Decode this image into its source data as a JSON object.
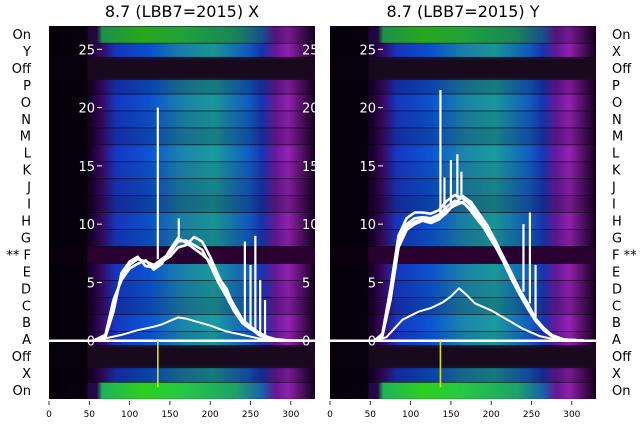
{
  "chart_data": [
    {
      "type": "heatmap",
      "title": "8.7 (LBB7=2015) X",
      "side": "left",
      "xlim": [
        0,
        330
      ],
      "xticks": [
        0,
        50,
        100,
        150,
        200,
        250,
        300
      ],
      "ylim": [
        -5,
        27
      ],
      "yticks": [
        0,
        5,
        10,
        15,
        20,
        25
      ],
      "row_labels": [
        "On",
        "Y",
        "Off",
        "P",
        "O",
        "N",
        "M",
        "L",
        "K",
        "J",
        "I",
        "H",
        "G",
        "** F",
        "E",
        "D",
        "C",
        "B",
        "A",
        "Off",
        "X",
        "On"
      ],
      "heatmap_colorscale": "dark purple-blue-cyan-green",
      "profile_start": 55,
      "profile_end": 315,
      "series": [
        {
          "values": [
            [
              55,
              0
            ],
            [
              70,
              0.4
            ],
            [
              80,
              3
            ],
            [
              90,
              5.5
            ],
            [
              100,
              6.5
            ],
            [
              110,
              7
            ],
            [
              120,
              6.8
            ],
            [
              130,
              6.5
            ],
            [
              140,
              7
            ],
            [
              150,
              7.5
            ],
            [
              160,
              8.5
            ],
            [
              170,
              8.6
            ],
            [
              180,
              8.2
            ],
            [
              190,
              7.8
            ],
            [
              200,
              6.5
            ],
            [
              210,
              5
            ],
            [
              220,
              3.8
            ],
            [
              230,
              2.5
            ],
            [
              240,
              1.5
            ],
            [
              250,
              1
            ],
            [
              260,
              0.6
            ],
            [
              270,
              0.3
            ],
            [
              280,
              0.1
            ],
            [
              300,
              0
            ],
            [
              315,
              0
            ]
          ]
        },
        {
          "values": [
            [
              55,
              0
            ],
            [
              70,
              0.3
            ],
            [
              80,
              2.5
            ],
            [
              90,
              5.8
            ],
            [
              100,
              6.8
            ],
            [
              110,
              7.2
            ],
            [
              120,
              6.4
            ],
            [
              130,
              6.3
            ],
            [
              140,
              6.8
            ],
            [
              150,
              7.2
            ],
            [
              160,
              8
            ],
            [
              170,
              8.2
            ],
            [
              180,
              8.9
            ],
            [
              190,
              8.5
            ],
            [
              200,
              7.2
            ],
            [
              210,
              5.6
            ],
            [
              220,
              4.2
            ],
            [
              230,
              3
            ],
            [
              240,
              1.8
            ],
            [
              250,
              1.2
            ],
            [
              260,
              0.7
            ],
            [
              270,
              0.35
            ],
            [
              280,
              0.15
            ],
            [
              300,
              0
            ],
            [
              315,
              0
            ]
          ]
        },
        {
          "values": [
            [
              55,
              0
            ],
            [
              70,
              0.5
            ],
            [
              80,
              3.5
            ],
            [
              90,
              5.2
            ],
            [
              100,
              6.2
            ],
            [
              110,
              6.6
            ],
            [
              120,
              6.9
            ],
            [
              130,
              6.1
            ],
            [
              140,
              6.6
            ],
            [
              150,
              7.8
            ],
            [
              160,
              8.8
            ],
            [
              170,
              8.4
            ],
            [
              180,
              7.9
            ],
            [
              190,
              7.4
            ],
            [
              200,
              6.8
            ],
            [
              210,
              5.4
            ],
            [
              220,
              4.5
            ],
            [
              230,
              2.8
            ],
            [
              240,
              1.6
            ],
            [
              250,
              1.1
            ],
            [
              260,
              0.5
            ],
            [
              270,
              0.25
            ],
            [
              280,
              0.1
            ],
            [
              300,
              0
            ],
            [
              315,
              0
            ]
          ]
        },
        {
          "values": [
            [
              55,
              0
            ],
            [
              70,
              0.2
            ],
            [
              90,
              0.5
            ],
            [
              110,
              0.9
            ],
            [
              130,
              1.2
            ],
            [
              140,
              1.4
            ],
            [
              150,
              1.7
            ],
            [
              160,
              2
            ],
            [
              170,
              1.9
            ],
            [
              180,
              1.7
            ],
            [
              200,
              1.3
            ],
            [
              220,
              0.8
            ],
            [
              240,
              0.5
            ],
            [
              260,
              0.2
            ],
            [
              280,
              0.05
            ],
            [
              315,
              0
            ]
          ]
        }
      ],
      "spikes": [
        {
          "x": 135,
          "peak": 20,
          "base": 7.0
        },
        {
          "x": 161,
          "peak": 10.5,
          "base": 8.6
        },
        {
          "x": 243,
          "peak": 8.5,
          "base": 1.4
        },
        {
          "x": 250,
          "peak": 6.5,
          "base": 1.0
        },
        {
          "x": 256,
          "peak": 9,
          "base": 0.8
        },
        {
          "x": 262,
          "peak": 5.2,
          "base": 0.5
        },
        {
          "x": 268,
          "peak": 3.5,
          "base": 0.3
        }
      ]
    },
    {
      "type": "heatmap",
      "title": "8.7 (LBB7=2015) Y",
      "side": "right",
      "xlim": [
        0,
        330
      ],
      "xticks": [
        0,
        50,
        100,
        150,
        200,
        250,
        300
      ],
      "ylim": [
        -5,
        27
      ],
      "yticks": [
        0,
        5,
        10,
        15,
        20,
        25
      ],
      "row_labels": [
        "On",
        "X",
        "Off",
        "P",
        "O",
        "N",
        "M",
        "L",
        "K",
        "J",
        "I",
        "H",
        "G",
        "F **",
        "E",
        "D",
        "C",
        "B",
        "A",
        "Off",
        "X",
        "On"
      ],
      "heatmap_colorscale": "dark purple-blue-cyan-green",
      "profile_start": 55,
      "profile_end": 315,
      "series": [
        {
          "values": [
            [
              55,
              0
            ],
            [
              65,
              0.5
            ],
            [
              75,
              4
            ],
            [
              85,
              8.5
            ],
            [
              95,
              10
            ],
            [
              105,
              10.5
            ],
            [
              115,
              10.6
            ],
            [
              125,
              10.5
            ],
            [
              135,
              10.8
            ],
            [
              145,
              11.5
            ],
            [
              155,
              12
            ],
            [
              165,
              11.8
            ],
            [
              175,
              11.3
            ],
            [
              185,
              10.6
            ],
            [
              195,
              9.6
            ],
            [
              205,
              8.4
            ],
            [
              215,
              7
            ],
            [
              225,
              5.6
            ],
            [
              235,
              4.2
            ],
            [
              245,
              3
            ],
            [
              255,
              1.8
            ],
            [
              265,
              1
            ],
            [
              275,
              0.4
            ],
            [
              290,
              0.1
            ],
            [
              315,
              0
            ]
          ]
        },
        {
          "values": [
            [
              55,
              0
            ],
            [
              65,
              0.4
            ],
            [
              75,
              3.5
            ],
            [
              85,
              8
            ],
            [
              95,
              9.5
            ],
            [
              105,
              10
            ],
            [
              115,
              10.3
            ],
            [
              125,
              10.1
            ],
            [
              135,
              10.4
            ],
            [
              145,
              11
            ],
            [
              155,
              11.8
            ],
            [
              165,
              12.4
            ],
            [
              175,
              11.9
            ],
            [
              185,
              10.9
            ],
            [
              195,
              9.9
            ],
            [
              205,
              8.6
            ],
            [
              215,
              7.2
            ],
            [
              225,
              5.8
            ],
            [
              235,
              4.4
            ],
            [
              245,
              3.2
            ],
            [
              255,
              1.9
            ],
            [
              265,
              1.1
            ],
            [
              275,
              0.5
            ],
            [
              290,
              0.1
            ],
            [
              315,
              0
            ]
          ]
        },
        {
          "values": [
            [
              55,
              0
            ],
            [
              65,
              0.6
            ],
            [
              75,
              4.5
            ],
            [
              85,
              9
            ],
            [
              95,
              10.5
            ],
            [
              105,
              11
            ],
            [
              115,
              11
            ],
            [
              125,
              10.9
            ],
            [
              135,
              11.2
            ],
            [
              145,
              12
            ],
            [
              155,
              12.5
            ],
            [
              165,
              12.2
            ],
            [
              175,
              11.6
            ],
            [
              185,
              10.4
            ],
            [
              195,
              9.2
            ],
            [
              205,
              8.1
            ],
            [
              215,
              6.8
            ],
            [
              225,
              5.3
            ],
            [
              235,
              4
            ],
            [
              245,
              2.8
            ],
            [
              255,
              1.7
            ],
            [
              265,
              0.9
            ],
            [
              275,
              0.4
            ],
            [
              290,
              0.1
            ],
            [
              315,
              0
            ]
          ]
        },
        {
          "values": [
            [
              55,
              0
            ],
            [
              65,
              0.5
            ],
            [
              75,
              3.8
            ],
            [
              85,
              8.2
            ],
            [
              95,
              9.8
            ],
            [
              105,
              10.2
            ],
            [
              115,
              10.4
            ],
            [
              125,
              10.3
            ],
            [
              135,
              10.6
            ],
            [
              145,
              11.2
            ],
            [
              155,
              11.6
            ],
            [
              165,
              11.9
            ],
            [
              175,
              11.1
            ],
            [
              185,
              10.2
            ],
            [
              195,
              9.4
            ],
            [
              205,
              8.2
            ],
            [
              215,
              6.9
            ],
            [
              225,
              5.5
            ],
            [
              235,
              4.1
            ],
            [
              245,
              2.9
            ],
            [
              255,
              1.8
            ],
            [
              265,
              1
            ],
            [
              275,
              0.45
            ],
            [
              290,
              0.1
            ],
            [
              315,
              0
            ]
          ]
        },
        {
          "values": [
            [
              55,
              0
            ],
            [
              70,
              0.3
            ],
            [
              90,
              1.8
            ],
            [
              110,
              2.5
            ],
            [
              125,
              2.8
            ],
            [
              140,
              3.3
            ],
            [
              150,
              3.8
            ],
            [
              160,
              4.5
            ],
            [
              170,
              3.9
            ],
            [
              180,
              3.2
            ],
            [
              200,
              2.6
            ],
            [
              220,
              1.8
            ],
            [
              240,
              1
            ],
            [
              260,
              0.4
            ],
            [
              280,
              0.1
            ],
            [
              315,
              0
            ]
          ]
        }
      ],
      "spikes": [
        {
          "x": 137,
          "peak": 21.5,
          "base": 10.8
        },
        {
          "x": 142,
          "peak": 14,
          "base": 11.2
        },
        {
          "x": 150,
          "peak": 15.5,
          "base": 11.6
        },
        {
          "x": 158,
          "peak": 16,
          "base": 12.2
        },
        {
          "x": 163,
          "peak": 14.5,
          "base": 12.2
        },
        {
          "x": 240,
          "peak": 10,
          "base": 4.2
        },
        {
          "x": 248,
          "peak": 11,
          "base": 3.2
        },
        {
          "x": 255,
          "peak": 6.5,
          "base": 2.0
        }
      ]
    }
  ]
}
